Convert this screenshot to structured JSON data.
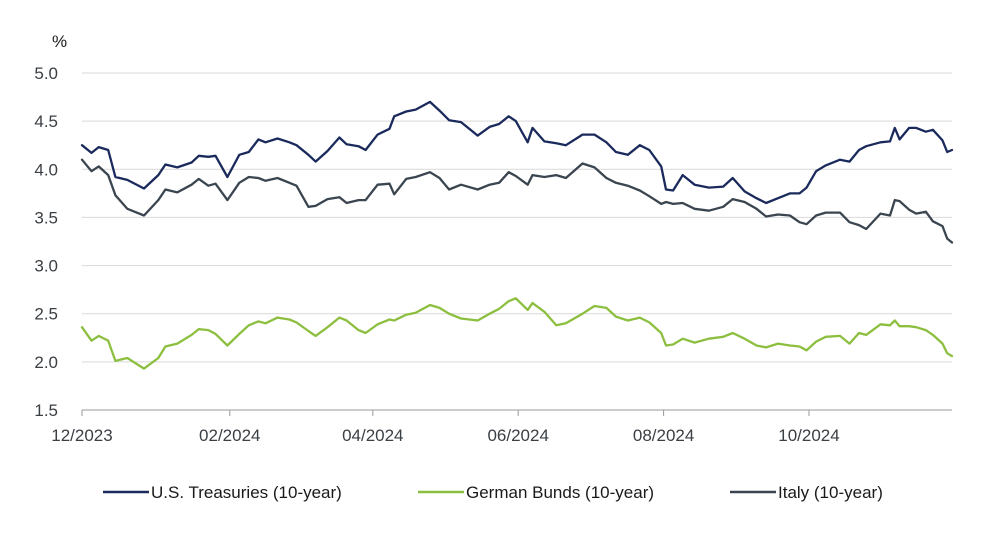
{
  "chart_data": {
    "type": "line",
    "y_unit": "%",
    "ylim": [
      1.5,
      5.0
    ],
    "y_ticks": [
      "5.0",
      "4.5",
      "4.0",
      "3.5",
      "3.0",
      "2.5",
      "2.0",
      "1.5"
    ],
    "x_range": [
      "2023-12-01",
      "2024-11-30"
    ],
    "x_ticks": [
      {
        "label": "12/2023",
        "date": "2023-12-01"
      },
      {
        "label": "02/2024",
        "date": "2024-02-01"
      },
      {
        "label": "04/2024",
        "date": "2024-04-01"
      },
      {
        "label": "06/2024",
        "date": "2024-06-01"
      },
      {
        "label": "08/2024",
        "date": "2024-08-01"
      },
      {
        "label": "10/2024",
        "date": "2024-10-01"
      }
    ],
    "grid": "horizontal",
    "legend_position": "bottom",
    "series": [
      {
        "name": "U.S. Treasuries (10-year)",
        "color": "#1b2a5c",
        "points": [
          [
            "2023-12-01",
            4.25
          ],
          [
            "2023-12-05",
            4.17
          ],
          [
            "2023-12-08",
            4.23
          ],
          [
            "2023-12-12",
            4.2
          ],
          [
            "2023-12-15",
            3.92
          ],
          [
            "2023-12-20",
            3.89
          ],
          [
            "2023-12-27",
            3.8
          ],
          [
            "2024-01-02",
            3.94
          ],
          [
            "2024-01-05",
            4.05
          ],
          [
            "2024-01-10",
            4.02
          ],
          [
            "2024-01-16",
            4.07
          ],
          [
            "2024-01-19",
            4.14
          ],
          [
            "2024-01-23",
            4.13
          ],
          [
            "2024-01-26",
            4.14
          ],
          [
            "2024-01-31",
            3.92
          ],
          [
            "2024-02-05",
            4.15
          ],
          [
            "2024-02-09",
            4.18
          ],
          [
            "2024-02-13",
            4.31
          ],
          [
            "2024-02-16",
            4.28
          ],
          [
            "2024-02-21",
            4.32
          ],
          [
            "2024-02-26",
            4.28
          ],
          [
            "2024-02-29",
            4.25
          ],
          [
            "2024-03-05",
            4.15
          ],
          [
            "2024-03-08",
            4.08
          ],
          [
            "2024-03-13",
            4.19
          ],
          [
            "2024-03-18",
            4.33
          ],
          [
            "2024-03-21",
            4.26
          ],
          [
            "2024-03-26",
            4.24
          ],
          [
            "2024-03-29",
            4.2
          ],
          [
            "2024-04-03",
            4.36
          ],
          [
            "2024-04-08",
            4.42
          ],
          [
            "2024-04-10",
            4.55
          ],
          [
            "2024-04-15",
            4.6
          ],
          [
            "2024-04-19",
            4.62
          ],
          [
            "2024-04-25",
            4.7
          ],
          [
            "2024-04-29",
            4.61
          ],
          [
            "2024-05-03",
            4.51
          ],
          [
            "2024-05-08",
            4.49
          ],
          [
            "2024-05-15",
            4.35
          ],
          [
            "2024-05-20",
            4.44
          ],
          [
            "2024-05-24",
            4.47
          ],
          [
            "2024-05-28",
            4.55
          ],
          [
            "2024-05-31",
            4.5
          ],
          [
            "2024-06-05",
            4.28
          ],
          [
            "2024-06-07",
            4.43
          ],
          [
            "2024-06-12",
            4.29
          ],
          [
            "2024-06-17",
            4.27
          ],
          [
            "2024-06-21",
            4.25
          ],
          [
            "2024-06-28",
            4.36
          ],
          [
            "2024-07-03",
            4.36
          ],
          [
            "2024-07-08",
            4.28
          ],
          [
            "2024-07-12",
            4.18
          ],
          [
            "2024-07-17",
            4.15
          ],
          [
            "2024-07-22",
            4.25
          ],
          [
            "2024-07-26",
            4.2
          ],
          [
            "2024-07-31",
            4.03
          ],
          [
            "2024-08-02",
            3.79
          ],
          [
            "2024-08-05",
            3.78
          ],
          [
            "2024-08-09",
            3.94
          ],
          [
            "2024-08-14",
            3.84
          ],
          [
            "2024-08-20",
            3.81
          ],
          [
            "2024-08-26",
            3.82
          ],
          [
            "2024-08-30",
            3.91
          ],
          [
            "2024-09-04",
            3.77
          ],
          [
            "2024-09-09",
            3.7
          ],
          [
            "2024-09-13",
            3.65
          ],
          [
            "2024-09-18",
            3.7
          ],
          [
            "2024-09-23",
            3.75
          ],
          [
            "2024-09-27",
            3.75
          ],
          [
            "2024-09-30",
            3.81
          ],
          [
            "2024-10-04",
            3.98
          ],
          [
            "2024-10-08",
            4.04
          ],
          [
            "2024-10-14",
            4.1
          ],
          [
            "2024-10-18",
            4.08
          ],
          [
            "2024-10-22",
            4.2
          ],
          [
            "2024-10-25",
            4.24
          ],
          [
            "2024-10-31",
            4.28
          ],
          [
            "2024-11-04",
            4.29
          ],
          [
            "2024-11-06",
            4.43
          ],
          [
            "2024-11-08",
            4.31
          ],
          [
            "2024-11-12",
            4.43
          ],
          [
            "2024-11-15",
            4.43
          ],
          [
            "2024-11-19",
            4.39
          ],
          [
            "2024-11-22",
            4.41
          ],
          [
            "2024-11-26",
            4.3
          ],
          [
            "2024-11-28",
            4.18
          ],
          [
            "2024-11-30",
            4.2
          ]
        ]
      },
      {
        "name": "German Bunds (10-year)",
        "color": "#8cbf3f",
        "points": [
          [
            "2023-12-01",
            2.36
          ],
          [
            "2023-12-05",
            2.22
          ],
          [
            "2023-12-08",
            2.27
          ],
          [
            "2023-12-12",
            2.22
          ],
          [
            "2023-12-15",
            2.01
          ],
          [
            "2023-12-20",
            2.04
          ],
          [
            "2023-12-27",
            1.93
          ],
          [
            "2024-01-02",
            2.04
          ],
          [
            "2024-01-05",
            2.16
          ],
          [
            "2024-01-10",
            2.19
          ],
          [
            "2024-01-16",
            2.28
          ],
          [
            "2024-01-19",
            2.34
          ],
          [
            "2024-01-23",
            2.33
          ],
          [
            "2024-01-26",
            2.29
          ],
          [
            "2024-01-31",
            2.17
          ],
          [
            "2024-02-05",
            2.29
          ],
          [
            "2024-02-09",
            2.38
          ],
          [
            "2024-02-13",
            2.42
          ],
          [
            "2024-02-16",
            2.4
          ],
          [
            "2024-02-21",
            2.46
          ],
          [
            "2024-02-26",
            2.44
          ],
          [
            "2024-02-29",
            2.41
          ],
          [
            "2024-03-05",
            2.32
          ],
          [
            "2024-03-08",
            2.27
          ],
          [
            "2024-03-13",
            2.36
          ],
          [
            "2024-03-18",
            2.46
          ],
          [
            "2024-03-21",
            2.43
          ],
          [
            "2024-03-26",
            2.33
          ],
          [
            "2024-03-29",
            2.3
          ],
          [
            "2024-04-03",
            2.39
          ],
          [
            "2024-04-08",
            2.44
          ],
          [
            "2024-04-10",
            2.43
          ],
          [
            "2024-04-15",
            2.49
          ],
          [
            "2024-04-19",
            2.51
          ],
          [
            "2024-04-25",
            2.59
          ],
          [
            "2024-04-29",
            2.56
          ],
          [
            "2024-05-03",
            2.5
          ],
          [
            "2024-05-08",
            2.45
          ],
          [
            "2024-05-15",
            2.43
          ],
          [
            "2024-05-20",
            2.5
          ],
          [
            "2024-05-24",
            2.55
          ],
          [
            "2024-05-28",
            2.63
          ],
          [
            "2024-05-31",
            2.66
          ],
          [
            "2024-06-05",
            2.54
          ],
          [
            "2024-06-07",
            2.61
          ],
          [
            "2024-06-12",
            2.52
          ],
          [
            "2024-06-17",
            2.38
          ],
          [
            "2024-06-21",
            2.4
          ],
          [
            "2024-06-28",
            2.5
          ],
          [
            "2024-07-03",
            2.58
          ],
          [
            "2024-07-08",
            2.56
          ],
          [
            "2024-07-12",
            2.47
          ],
          [
            "2024-07-17",
            2.43
          ],
          [
            "2024-07-22",
            2.46
          ],
          [
            "2024-07-26",
            2.41
          ],
          [
            "2024-07-31",
            2.3
          ],
          [
            "2024-08-02",
            2.17
          ],
          [
            "2024-08-05",
            2.18
          ],
          [
            "2024-08-09",
            2.24
          ],
          [
            "2024-08-14",
            2.2
          ],
          [
            "2024-08-20",
            2.24
          ],
          [
            "2024-08-26",
            2.26
          ],
          [
            "2024-08-30",
            2.3
          ],
          [
            "2024-09-04",
            2.24
          ],
          [
            "2024-09-09",
            2.17
          ],
          [
            "2024-09-13",
            2.15
          ],
          [
            "2024-09-18",
            2.19
          ],
          [
            "2024-09-23",
            2.17
          ],
          [
            "2024-09-27",
            2.16
          ],
          [
            "2024-09-30",
            2.12
          ],
          [
            "2024-10-04",
            2.21
          ],
          [
            "2024-10-08",
            2.26
          ],
          [
            "2024-10-14",
            2.27
          ],
          [
            "2024-10-18",
            2.19
          ],
          [
            "2024-10-22",
            2.3
          ],
          [
            "2024-10-25",
            2.28
          ],
          [
            "2024-10-31",
            2.39
          ],
          [
            "2024-11-04",
            2.38
          ],
          [
            "2024-11-06",
            2.43
          ],
          [
            "2024-11-08",
            2.37
          ],
          [
            "2024-11-12",
            2.37
          ],
          [
            "2024-11-15",
            2.36
          ],
          [
            "2024-11-19",
            2.33
          ],
          [
            "2024-11-22",
            2.28
          ],
          [
            "2024-11-26",
            2.19
          ],
          [
            "2024-11-28",
            2.09
          ],
          [
            "2024-11-30",
            2.06
          ]
        ]
      },
      {
        "name": "Italy (10-year)",
        "color": "#3a4550",
        "points": [
          [
            "2023-12-01",
            4.1
          ],
          [
            "2023-12-05",
            3.98
          ],
          [
            "2023-12-08",
            4.03
          ],
          [
            "2023-12-12",
            3.94
          ],
          [
            "2023-12-15",
            3.73
          ],
          [
            "2023-12-20",
            3.59
          ],
          [
            "2023-12-27",
            3.52
          ],
          [
            "2024-01-02",
            3.68
          ],
          [
            "2024-01-05",
            3.79
          ],
          [
            "2024-01-10",
            3.76
          ],
          [
            "2024-01-16",
            3.84
          ],
          [
            "2024-01-19",
            3.9
          ],
          [
            "2024-01-23",
            3.83
          ],
          [
            "2024-01-26",
            3.85
          ],
          [
            "2024-01-31",
            3.68
          ],
          [
            "2024-02-05",
            3.86
          ],
          [
            "2024-02-09",
            3.92
          ],
          [
            "2024-02-13",
            3.91
          ],
          [
            "2024-02-16",
            3.88
          ],
          [
            "2024-02-21",
            3.91
          ],
          [
            "2024-02-26",
            3.86
          ],
          [
            "2024-02-29",
            3.83
          ],
          [
            "2024-03-05",
            3.61
          ],
          [
            "2024-03-08",
            3.62
          ],
          [
            "2024-03-13",
            3.69
          ],
          [
            "2024-03-18",
            3.71
          ],
          [
            "2024-03-21",
            3.65
          ],
          [
            "2024-03-26",
            3.68
          ],
          [
            "2024-03-29",
            3.68
          ],
          [
            "2024-04-03",
            3.84
          ],
          [
            "2024-04-08",
            3.85
          ],
          [
            "2024-04-10",
            3.74
          ],
          [
            "2024-04-15",
            3.9
          ],
          [
            "2024-04-19",
            3.92
          ],
          [
            "2024-04-25",
            3.97
          ],
          [
            "2024-04-29",
            3.91
          ],
          [
            "2024-05-03",
            3.79
          ],
          [
            "2024-05-08",
            3.84
          ],
          [
            "2024-05-15",
            3.79
          ],
          [
            "2024-05-20",
            3.84
          ],
          [
            "2024-05-24",
            3.86
          ],
          [
            "2024-05-28",
            3.97
          ],
          [
            "2024-05-31",
            3.93
          ],
          [
            "2024-06-05",
            3.84
          ],
          [
            "2024-06-07",
            3.94
          ],
          [
            "2024-06-12",
            3.92
          ],
          [
            "2024-06-17",
            3.94
          ],
          [
            "2024-06-21",
            3.91
          ],
          [
            "2024-06-28",
            4.06
          ],
          [
            "2024-07-03",
            4.02
          ],
          [
            "2024-07-08",
            3.91
          ],
          [
            "2024-07-12",
            3.86
          ],
          [
            "2024-07-17",
            3.83
          ],
          [
            "2024-07-22",
            3.78
          ],
          [
            "2024-07-26",
            3.72
          ],
          [
            "2024-07-31",
            3.64
          ],
          [
            "2024-08-02",
            3.66
          ],
          [
            "2024-08-05",
            3.64
          ],
          [
            "2024-08-09",
            3.65
          ],
          [
            "2024-08-14",
            3.59
          ],
          [
            "2024-08-20",
            3.57
          ],
          [
            "2024-08-26",
            3.61
          ],
          [
            "2024-08-30",
            3.69
          ],
          [
            "2024-09-04",
            3.66
          ],
          [
            "2024-09-09",
            3.59
          ],
          [
            "2024-09-13",
            3.51
          ],
          [
            "2024-09-18",
            3.53
          ],
          [
            "2024-09-23",
            3.52
          ],
          [
            "2024-09-27",
            3.45
          ],
          [
            "2024-09-30",
            3.43
          ],
          [
            "2024-10-04",
            3.52
          ],
          [
            "2024-10-08",
            3.55
          ],
          [
            "2024-10-14",
            3.55
          ],
          [
            "2024-10-18",
            3.45
          ],
          [
            "2024-10-22",
            3.42
          ],
          [
            "2024-10-25",
            3.38
          ],
          [
            "2024-10-31",
            3.54
          ],
          [
            "2024-11-04",
            3.52
          ],
          [
            "2024-11-06",
            3.68
          ],
          [
            "2024-11-08",
            3.67
          ],
          [
            "2024-11-12",
            3.58
          ],
          [
            "2024-11-15",
            3.54
          ],
          [
            "2024-11-19",
            3.56
          ],
          [
            "2024-11-22",
            3.46
          ],
          [
            "2024-11-26",
            3.41
          ],
          [
            "2024-11-28",
            3.28
          ],
          [
            "2024-11-30",
            3.24
          ]
        ]
      }
    ]
  }
}
